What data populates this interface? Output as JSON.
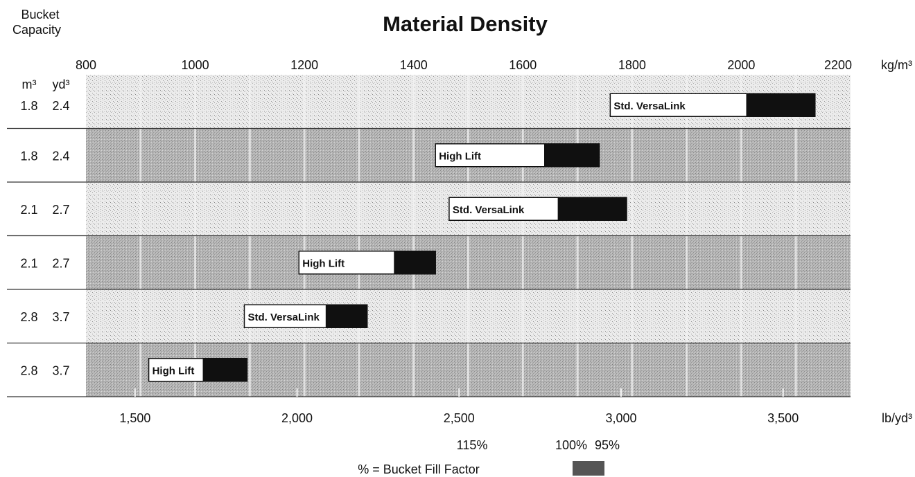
{
  "chart_data": {
    "type": "bar",
    "title": "Material Density",
    "corner_label_line1": "Bucket",
    "corner_label_line2": "Capacity",
    "col_headers": {
      "m3": "m³",
      "yd3": "yd³"
    },
    "top_axis": {
      "range": [
        800,
        2200
      ],
      "ticks": [
        "800",
        "1000",
        "1200",
        "1400",
        "1600",
        "1800",
        "2000",
        "2200"
      ],
      "unit": "kg/m³"
    },
    "bottom_axis": {
      "ticks": [
        "1,500",
        "2,000",
        "2,500",
        "3,000",
        "3,500"
      ],
      "unit": "lb/yd³"
    },
    "rows": [
      {
        "m3": "1.8",
        "yd3": "2.4",
        "label": "Std. VersaLink",
        "start": 1760,
        "mid": 2010,
        "end": 2135
      },
      {
        "m3": "1.8",
        "yd3": "2.4",
        "label": "High Lift",
        "start": 1440,
        "mid": 1640,
        "end": 1740
      },
      {
        "m3": "2.1",
        "yd3": "2.7",
        "label": "Std. VersaLink",
        "start": 1465,
        "mid": 1665,
        "end": 1790
      },
      {
        "m3": "2.1",
        "yd3": "2.7",
        "label": "High Lift",
        "start": 1190,
        "mid": 1365,
        "end": 1440
      },
      {
        "m3": "2.8",
        "yd3": "3.7",
        "label": "Std. VersaLink",
        "start": 1090,
        "mid": 1240,
        "end": 1315
      },
      {
        "m3": "2.8",
        "yd3": "3.7",
        "label": "High Lift",
        "start": 915,
        "mid": 1015,
        "end": 1095
      }
    ],
    "legend": {
      "p115": "115%",
      "p100": "100%",
      "p95": "95%",
      "caption": "% = Bucket Fill Factor"
    },
    "grid": true,
    "colors": {
      "band_light": "#e9e9e9",
      "band_dark": "#b9b9b9",
      "bar_fill": "#ffffff",
      "bar_dark": "#101010",
      "legend_swatch": "#555555"
    }
  }
}
